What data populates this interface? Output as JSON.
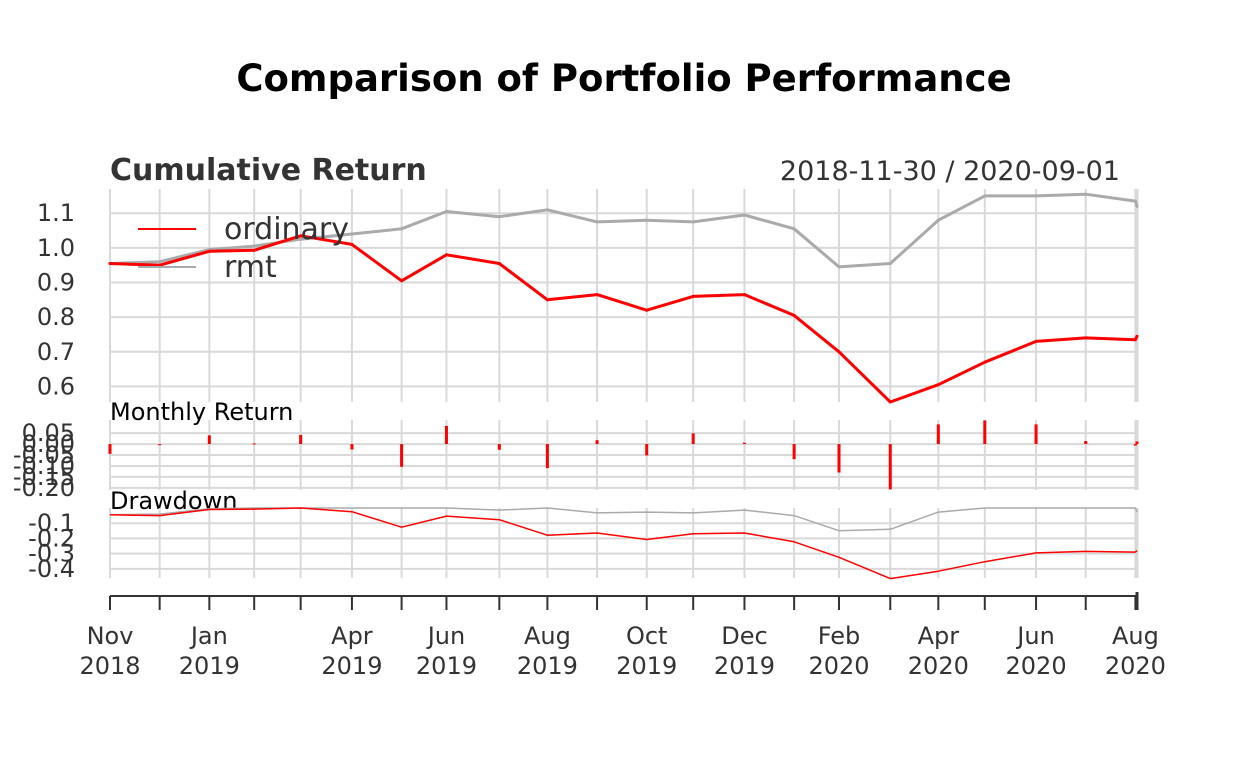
{
  "title": "Comparison of Portfolio Performance",
  "date_range": "2018-11-30 / 2020-09-01",
  "colors": {
    "ordinary": "#ff0000",
    "rmt": "#aaaaaa",
    "grid": "#d9d9d9",
    "axis": "#333333"
  },
  "chart_data": [
    {
      "type": "line",
      "title": "Cumulative Return",
      "x": [
        "2018-11-30",
        "2018-12-31",
        "2019-01-31",
        "2019-02-28",
        "2019-03-29",
        "2019-04-30",
        "2019-05-31",
        "2019-06-28",
        "2019-07-31",
        "2019-08-30",
        "2019-09-30",
        "2019-10-31",
        "2019-11-29",
        "2019-12-31",
        "2020-01-31",
        "2020-02-28",
        "2020-03-31",
        "2020-04-30",
        "2020-05-29",
        "2020-06-30",
        "2020-07-31",
        "2020-08-31",
        "2020-09-01"
      ],
      "series": [
        {
          "name": "ordinary",
          "values": [
            0.955,
            0.95,
            0.99,
            0.993,
            1.035,
            1.01,
            0.905,
            0.98,
            0.955,
            0.85,
            0.865,
            0.82,
            0.86,
            0.865,
            0.805,
            0.7,
            0.555,
            0.605,
            0.67,
            0.73,
            0.74,
            0.735,
            0.745
          ]
        },
        {
          "name": "rmt",
          "values": [
            0.955,
            0.96,
            0.995,
            1.005,
            1.025,
            1.04,
            1.055,
            1.105,
            1.09,
            1.11,
            1.075,
            1.08,
            1.075,
            1.095,
            1.055,
            0.945,
            0.955,
            1.08,
            1.15,
            1.15,
            1.155,
            1.135,
            1.12
          ]
        }
      ],
      "yticks": [
        "1.1",
        "1.0",
        "0.9",
        "0.8",
        "0.7",
        "0.6"
      ],
      "ylim": [
        0.555,
        1.17
      ],
      "legend": "top-left",
      "grid": true
    },
    {
      "type": "bar",
      "title": "Monthly Return",
      "x": [
        "2018-11-30",
        "2018-12-31",
        "2019-01-31",
        "2019-02-28",
        "2019-03-29",
        "2019-04-30",
        "2019-05-31",
        "2019-06-28",
        "2019-07-31",
        "2019-08-30",
        "2019-09-30",
        "2019-10-31",
        "2019-11-29",
        "2019-12-31",
        "2020-01-31",
        "2020-02-28",
        "2020-03-31",
        "2020-04-30",
        "2020-05-29",
        "2020-06-30",
        "2020-07-31",
        "2020-08-31",
        "2020-09-01"
      ],
      "series": [
        {
          "name": "ordinary",
          "values": [
            -0.045,
            -0.005,
            0.04,
            0.003,
            0.042,
            -0.025,
            -0.104,
            0.083,
            -0.026,
            -0.11,
            0.018,
            -0.052,
            0.049,
            0.006,
            -0.069,
            -0.13,
            -0.207,
            0.09,
            0.108,
            0.09,
            0.014,
            -0.007,
            0.012
          ]
        }
      ],
      "yticks": [
        "0.05",
        "0.00",
        "-0.05",
        "-0.10",
        "-0.15",
        "-0.20"
      ],
      "ylim": [
        -0.21,
        0.11
      ],
      "grid": true
    },
    {
      "type": "line",
      "title": "Drawdown",
      "x": [
        "2018-11-30",
        "2018-12-31",
        "2019-01-31",
        "2019-02-28",
        "2019-03-29",
        "2019-04-30",
        "2019-05-31",
        "2019-06-28",
        "2019-07-31",
        "2019-08-30",
        "2019-09-30",
        "2019-10-31",
        "2019-11-29",
        "2019-12-31",
        "2020-01-31",
        "2020-02-28",
        "2020-03-31",
        "2020-04-30",
        "2020-05-29",
        "2020-06-30",
        "2020-07-31",
        "2020-08-31",
        "2020-09-01"
      ],
      "series": [
        {
          "name": "ordinary",
          "values": [
            -0.045,
            -0.05,
            -0.01,
            -0.007,
            0.0,
            -0.024,
            -0.126,
            -0.053,
            -0.077,
            -0.179,
            -0.164,
            -0.207,
            -0.169,
            -0.164,
            -0.222,
            -0.324,
            -0.464,
            -0.415,
            -0.353,
            -0.295,
            -0.285,
            -0.29,
            -0.28
          ]
        },
        {
          "name": "rmt",
          "values": [
            -0.045,
            -0.04,
            -0.005,
            0.0,
            0.0,
            0.0,
            0.0,
            0.0,
            -0.014,
            0.0,
            -0.032,
            -0.027,
            -0.032,
            -0.014,
            -0.05,
            -0.149,
            -0.14,
            -0.027,
            0.0,
            0.0,
            0.0,
            0.0,
            -0.026
          ]
        }
      ],
      "yticks": [
        "-0.1",
        "-0.2",
        "-0.3",
        "-0.4"
      ],
      "ylim": [
        -0.46,
        0.0
      ],
      "grid": true
    }
  ],
  "xaxis": {
    "ticks": [
      {
        "date": "2018-11-30",
        "label_month": "Nov",
        "label_year": "2018"
      },
      {
        "date": "2018-12-31",
        "label_month": "",
        "label_year": ""
      },
      {
        "date": "2019-01-31",
        "label_month": "Jan",
        "label_year": "2019"
      },
      {
        "date": "2019-02-28",
        "label_month": "",
        "label_year": ""
      },
      {
        "date": "2019-03-29",
        "label_month": "",
        "label_year": ""
      },
      {
        "date": "2019-04-30",
        "label_month": "Apr",
        "label_year": "2019"
      },
      {
        "date": "2019-05-31",
        "label_month": "",
        "label_year": ""
      },
      {
        "date": "2019-06-28",
        "label_month": "Jun",
        "label_year": "2019"
      },
      {
        "date": "2019-07-31",
        "label_month": "",
        "label_year": ""
      },
      {
        "date": "2019-08-30",
        "label_month": "Aug",
        "label_year": "2019"
      },
      {
        "date": "2019-09-30",
        "label_month": "",
        "label_year": ""
      },
      {
        "date": "2019-10-31",
        "label_month": "Oct",
        "label_year": "2019"
      },
      {
        "date": "2019-11-29",
        "label_month": "",
        "label_year": ""
      },
      {
        "date": "2019-12-31",
        "label_month": "Dec",
        "label_year": "2019"
      },
      {
        "date": "2020-01-31",
        "label_month": "",
        "label_year": ""
      },
      {
        "date": "2020-02-28",
        "label_month": "Feb",
        "label_year": "2020"
      },
      {
        "date": "2020-03-31",
        "label_month": "",
        "label_year": ""
      },
      {
        "date": "2020-04-30",
        "label_month": "Apr",
        "label_year": "2020"
      },
      {
        "date": "2020-05-29",
        "label_month": "",
        "label_year": ""
      },
      {
        "date": "2020-06-30",
        "label_month": "Jun",
        "label_year": "2020"
      },
      {
        "date": "2020-07-31",
        "label_month": "",
        "label_year": ""
      },
      {
        "date": "2020-08-31",
        "label_month": "Aug",
        "label_year": "2020"
      }
    ]
  }
}
